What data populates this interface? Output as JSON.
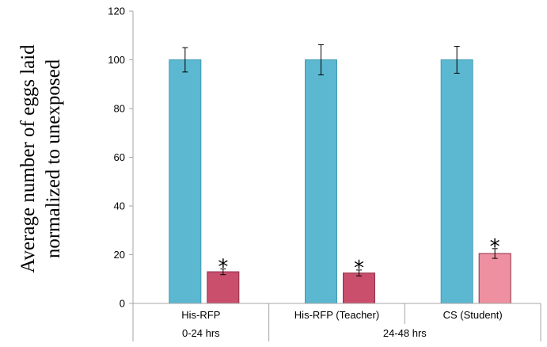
{
  "chart_data": {
    "type": "bar",
    "ylabel_lines": [
      "Average number of eggs laid",
      "normalized to unexposed"
    ],
    "ylim": [
      0,
      120
    ],
    "yticks": [
      "0",
      "20",
      "40",
      "60",
      "80",
      "100",
      "120"
    ],
    "groups": [
      {
        "label": "His-RFP",
        "bars": [
          {
            "value": 100,
            "error": 5,
            "color": "#5BB8D0",
            "star": false
          },
          {
            "value": 13,
            "error": 1.2,
            "color": "#C94F6D",
            "star": true
          }
        ]
      },
      {
        "label": "His-RFP (Teacher)",
        "bars": [
          {
            "value": 100,
            "error": 6.2,
            "color": "#5BB8D0",
            "star": false
          },
          {
            "value": 12.5,
            "error": 1.2,
            "color": "#C94F6D",
            "star": true
          }
        ]
      },
      {
        "label": "CS (Student)",
        "bars": [
          {
            "value": 100,
            "error": 5.5,
            "color": "#5BB8D0",
            "star": false
          },
          {
            "value": 20.5,
            "error": 2,
            "color": "#EE909F",
            "star": true
          }
        ]
      }
    ],
    "time_labels": [
      {
        "label": "0-24 hrs",
        "span_groups": [
          0
        ]
      },
      {
        "label": "24-48 hrs",
        "span_groups": [
          1,
          2
        ]
      }
    ],
    "star_symbol": "*",
    "grid": false
  }
}
